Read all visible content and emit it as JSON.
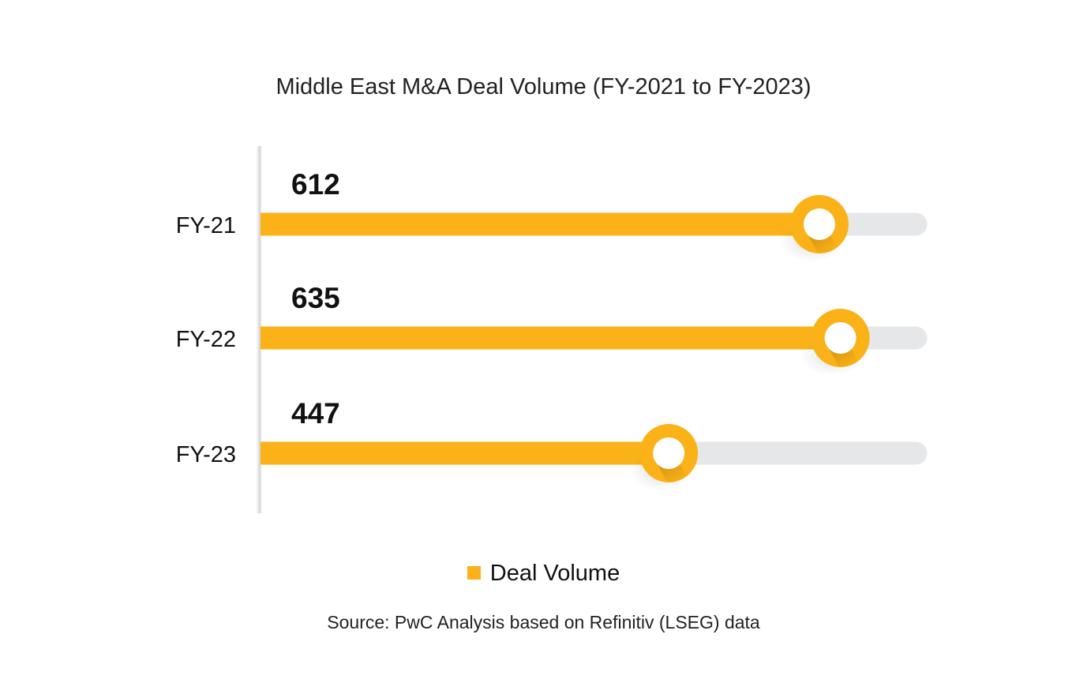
{
  "chart_data": {
    "type": "bar",
    "orientation": "horizontal",
    "title": "Middle East M&A Deal Volume (FY-2021 to FY-2023)",
    "categories": [
      "FY-21",
      "FY-22",
      "FY-23"
    ],
    "series": [
      {
        "name": "Deal Volume",
        "values": [
          612,
          635,
          447
        ]
      }
    ],
    "data_labels": [
      "612",
      "635",
      "447"
    ],
    "xlim": [
      0,
      755
    ],
    "xlabel": "",
    "ylabel": "",
    "grid": false,
    "legend": {
      "position": "bottom-center",
      "entries": [
        "Deal Volume"
      ]
    },
    "colors": {
      "bar": "#FBB218",
      "track": "#E6E7E8",
      "knob_inner": "#ffffff"
    }
  },
  "footer": {
    "source": "Source: PwC Analysis based on Refinitiv (LSEG) data"
  }
}
